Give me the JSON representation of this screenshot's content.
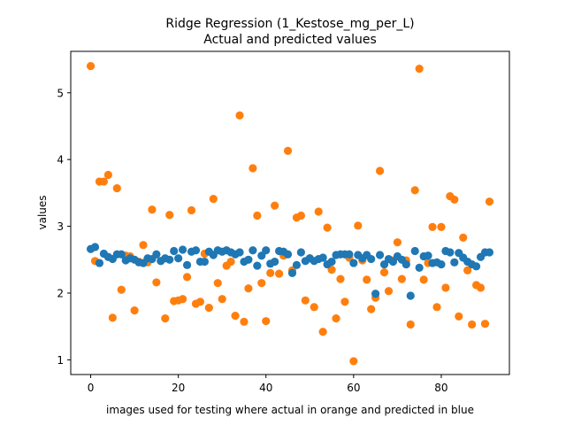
{
  "chart_data": {
    "type": "scatter",
    "title": "Ridge Regression (1_Kestose_mg_per_L)",
    "subtitle": "Actual and predicted values",
    "xlabel": "images used for testing where actual in orange and predicted in blue",
    "ylabel": "values",
    "xlim": [
      -4.55,
      95.55
    ],
    "ylim": [
      0.78,
      5.62
    ],
    "xticks": [
      0,
      20,
      40,
      60,
      80
    ],
    "yticks": [
      1,
      2,
      3,
      4,
      5
    ],
    "grid": false,
    "series": [
      {
        "color": "#ff7f0e",
        "values": [
          5.4,
          2.48,
          3.67,
          3.67,
          3.77,
          1.63,
          3.57,
          2.05,
          2.56,
          2.55,
          1.74,
          2.47,
          2.72,
          2.46,
          3.25,
          2.16,
          2.48,
          1.62,
          3.17,
          1.88,
          1.89,
          1.91,
          2.24,
          3.24,
          1.84,
          1.87,
          2.59,
          1.78,
          3.41,
          2.15,
          1.91,
          2.41,
          2.47,
          1.66,
          4.66,
          1.57,
          2.07,
          3.87,
          3.16,
          2.15,
          1.58,
          2.3,
          3.31,
          2.29,
          2.56,
          4.13,
          2.34,
          3.13,
          3.16,
          1.89,
          2.52,
          1.79,
          3.22,
          1.42,
          2.98,
          2.35,
          1.62,
          2.21,
          1.87,
          2.53,
          0.98,
          3.01,
          2.49,
          2.2,
          1.76,
          1.93,
          3.83,
          2.31,
          2.03,
          2.49,
          2.76,
          2.21,
          2.49,
          1.53,
          3.54,
          5.36,
          2.2,
          2.45,
          2.99,
          1.79,
          2.99,
          2.08,
          3.45,
          3.4,
          1.65,
          2.83,
          2.34,
          1.53,
          2.12,
          2.08,
          1.54,
          3.37
        ]
      },
      {
        "color": "#1f77b4",
        "values": [
          2.66,
          2.69,
          2.45,
          2.59,
          2.54,
          2.51,
          2.58,
          2.58,
          2.49,
          2.52,
          2.5,
          2.46,
          2.45,
          2.52,
          2.51,
          2.58,
          2.48,
          2.52,
          2.5,
          2.63,
          2.52,
          2.65,
          2.42,
          2.62,
          2.64,
          2.47,
          2.47,
          2.62,
          2.57,
          2.64,
          2.62,
          2.64,
          2.61,
          2.58,
          2.61,
          2.47,
          2.5,
          2.64,
          2.41,
          2.56,
          2.64,
          2.44,
          2.47,
          2.63,
          2.62,
          2.58,
          2.3,
          2.42,
          2.61,
          2.48,
          2.52,
          2.48,
          2.51,
          2.53,
          2.43,
          2.47,
          2.57,
          2.58,
          2.58,
          2.58,
          2.45,
          2.57,
          2.52,
          2.57,
          2.51,
          1.99,
          2.57,
          2.43,
          2.51,
          2.47,
          2.55,
          2.5,
          2.43,
          1.96,
          2.63,
          2.38,
          2.55,
          2.56,
          2.45,
          2.46,
          2.43,
          2.63,
          2.61,
          2.46,
          2.6,
          2.53,
          2.47,
          2.43,
          2.4,
          2.54,
          2.61,
          2.61
        ]
      }
    ]
  }
}
